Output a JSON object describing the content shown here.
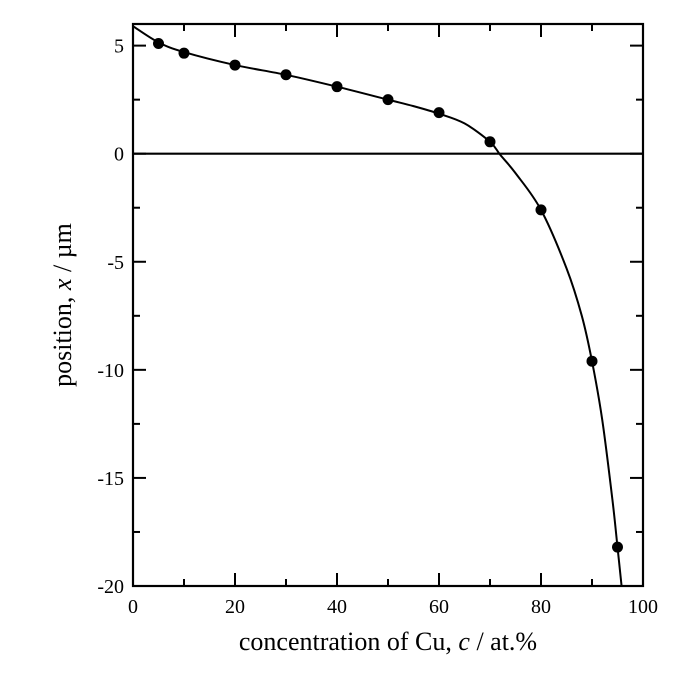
{
  "chart_data": {
    "type": "scatter",
    "xlabel": {
      "main": "concentration of Cu, ",
      "var": "c",
      "unit": " / at.%"
    },
    "ylabel": {
      "main": "position, ",
      "var": "x",
      "unit": " / µm"
    },
    "xlim": [
      0,
      100
    ],
    "ylim": [
      -20,
      6
    ],
    "x_ticks": [
      0,
      20,
      40,
      60,
      80,
      100
    ],
    "x_tick_labels": [
      "0",
      "20",
      "40",
      "60",
      "80",
      "100"
    ],
    "y_ticks": [
      -20,
      -15,
      -10,
      -5,
      0,
      5
    ],
    "y_tick_labels": [
      "-20",
      "-15",
      "-10",
      "-5",
      "0",
      "5"
    ],
    "reference_line_y": 0,
    "series": [
      {
        "marker": "circle",
        "points": [
          {
            "x": 5,
            "y": 5.1
          },
          {
            "x": 10,
            "y": 4.65
          },
          {
            "x": 20,
            "y": 4.1
          },
          {
            "x": 30,
            "y": 3.65
          },
          {
            "x": 40,
            "y": 3.1
          },
          {
            "x": 50,
            "y": 2.5
          },
          {
            "x": 60,
            "y": 1.9
          },
          {
            "x": 70,
            "y": 0.55
          },
          {
            "x": 80,
            "y": -2.6
          },
          {
            "x": 90,
            "y": -9.6
          },
          {
            "x": 95,
            "y": -18.2
          }
        ]
      },
      {
        "line": "fit-curve",
        "points": [
          {
            "x": 0,
            "y": 5.9
          },
          {
            "x": 5,
            "y": 5.15
          },
          {
            "x": 10,
            "y": 4.7
          },
          {
            "x": 20,
            "y": 4.1
          },
          {
            "x": 30,
            "y": 3.65
          },
          {
            "x": 40,
            "y": 3.1
          },
          {
            "x": 50,
            "y": 2.5
          },
          {
            "x": 55,
            "y": 2.2
          },
          {
            "x": 60,
            "y": 1.85
          },
          {
            "x": 65,
            "y": 1.4
          },
          {
            "x": 70,
            "y": 0.55
          },
          {
            "x": 72,
            "y": -0.05
          },
          {
            "x": 75,
            "y": -0.9
          },
          {
            "x": 80,
            "y": -2.6
          },
          {
            "x": 85,
            "y": -5.3
          },
          {
            "x": 88,
            "y": -7.5
          },
          {
            "x": 90,
            "y": -9.6
          },
          {
            "x": 92,
            "y": -12.3
          },
          {
            "x": 94,
            "y": -16.0
          },
          {
            "x": 95,
            "y": -18.2
          },
          {
            "x": 95.8,
            "y": -20
          }
        ]
      }
    ],
    "colors": {
      "ink": "#000000",
      "background": "#ffffff"
    }
  }
}
